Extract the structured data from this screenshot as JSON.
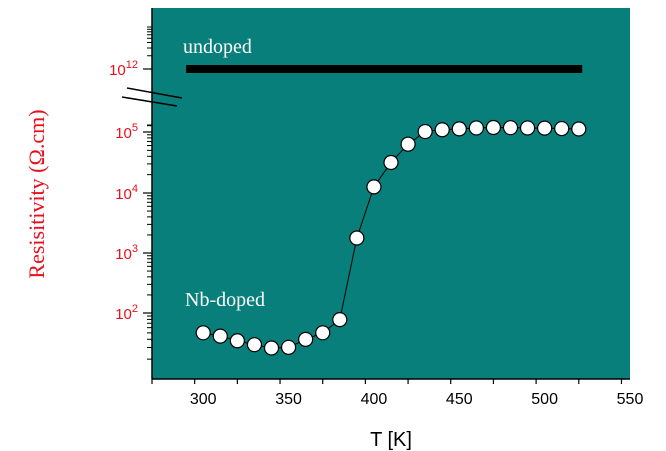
{
  "chart_data": {
    "type": "scatter",
    "title": "",
    "xlabel": "T [K]",
    "ylabel": "Resisitivity (Ω.cm)",
    "xlim": [
      270,
      550
    ],
    "ylim_log10": [
      1.0,
      13.0
    ],
    "y_scale": "log, broken axis between 10^5 and 10^12",
    "x_ticks": [
      300,
      350,
      400,
      450,
      500,
      550
    ],
    "y_ticks": [
      {
        "base": "10",
        "exp": "2",
        "log10": 2
      },
      {
        "base": "10",
        "exp": "3",
        "log10": 3
      },
      {
        "base": "10",
        "exp": "4",
        "log10": 4
      },
      {
        "base": "10",
        "exp": "5",
        "log10": 5
      },
      {
        "base": "10",
        "exp": "12",
        "log10": 12
      }
    ],
    "grid": false,
    "background_color": "#087f7b",
    "series": [
      {
        "name": "undoped",
        "style": "thick horizontal line",
        "color": "#000000",
        "x": [
          290,
          522
        ],
        "y_log10": [
          12,
          12
        ]
      },
      {
        "name": "Nb-doped",
        "style": "open circles connected by line",
        "color": "#ffffff",
        "x": [
          300,
          310,
          320,
          330,
          340,
          350,
          360,
          370,
          380,
          390,
          400,
          410,
          420,
          430,
          440,
          450,
          460,
          470,
          480,
          490,
          500,
          510,
          520
        ],
        "y_log10": [
          1.7,
          1.65,
          1.58,
          1.52,
          1.47,
          1.48,
          1.6,
          1.7,
          1.9,
          3.25,
          4.1,
          4.5,
          4.8,
          5.05,
          5.25,
          5.35,
          5.45,
          5.5,
          5.48,
          5.45,
          5.43,
          5.38,
          5.33
        ]
      }
    ]
  }
}
